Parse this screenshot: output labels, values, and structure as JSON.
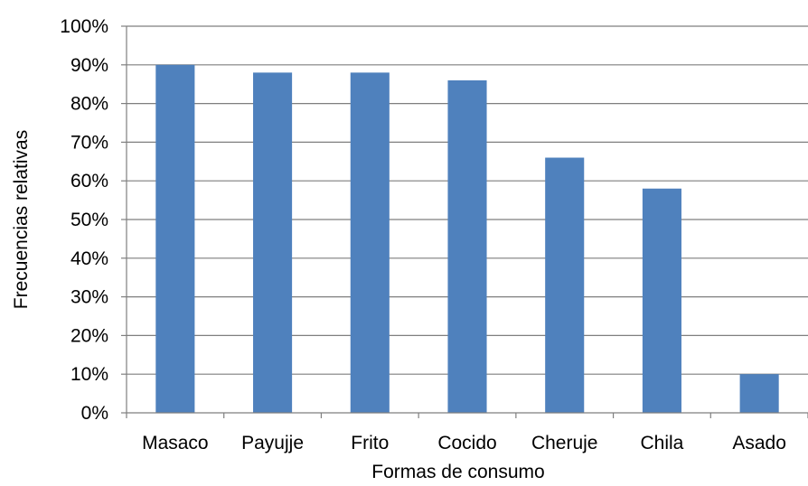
{
  "chart_data": {
    "type": "bar",
    "categories": [
      "Masaco",
      "Payujje",
      "Frito",
      "Cocido",
      "Cheruje",
      "Chila",
      "Asado"
    ],
    "series": [
      {
        "values": [
          90,
          88,
          88,
          86,
          66,
          58,
          10
        ]
      }
    ],
    "xlabel": "Formas de consumo",
    "ylabel": "Frecuencias relativas",
    "ylim": [
      0,
      100
    ],
    "yticks": [
      0,
      10,
      20,
      30,
      40,
      50,
      60,
      70,
      80,
      90,
      100
    ],
    "ytick_labels": [
      "0%",
      "10%",
      "20%",
      "30%",
      "40%",
      "50%",
      "60%",
      "70%",
      "80%",
      "90%",
      "100%"
    ],
    "grid": true,
    "legend": "none",
    "bar_color": "#4f81bd"
  }
}
